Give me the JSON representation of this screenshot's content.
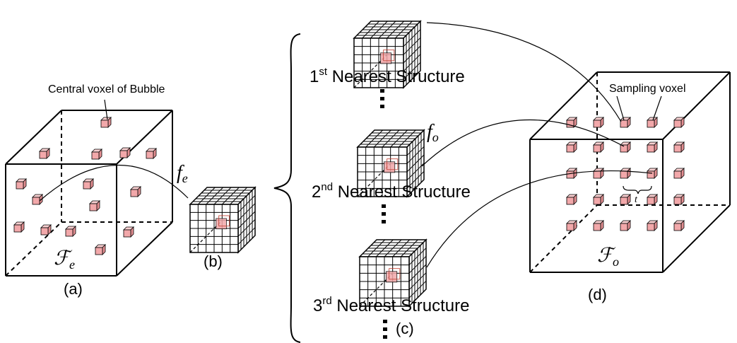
{
  "labels": {
    "central_voxel": "Central voxel of Bubble",
    "sampling_voxel": "Sampling voxel",
    "fe_small_base": "f",
    "fe_small_sub": "e",
    "fo_small_base": "f",
    "fo_small_sub": "o",
    "Fe_base": "ℱ",
    "Fe_sub": "e",
    "Fo_base": "ℱ",
    "Fo_sub": "o",
    "t": "t",
    "panel_a": "(a)",
    "panel_b": "(b)",
    "panel_c": "(c)",
    "panel_d": "(d)"
  },
  "structures": [
    {
      "ordinal": "1",
      "suffix": "st",
      "text": " Nearest Structure"
    },
    {
      "ordinal": "2",
      "suffix": "nd",
      "text": " Nearest Structure"
    },
    {
      "ordinal": "3",
      "suffix": "rd",
      "text": " Nearest Structure"
    }
  ],
  "colors": {
    "voxel_face": "#f2a8aa",
    "voxel_top": "#f8cfd0",
    "voxel_side": "#e48f92",
    "outline": "#000000"
  }
}
